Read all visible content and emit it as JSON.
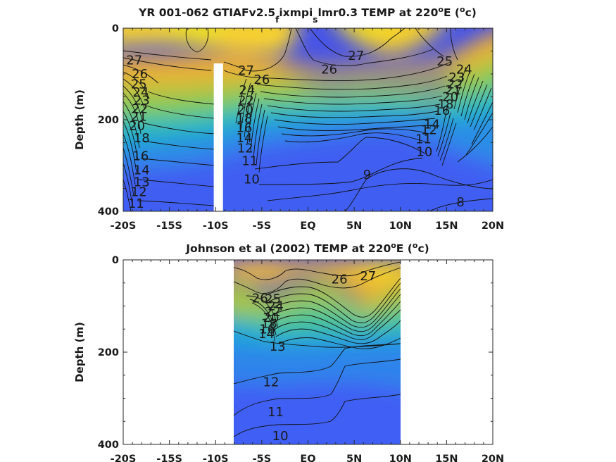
{
  "chart_data": [
    {
      "type": "heatmap",
      "title_parts": [
        "YR 001-062 GTIAFv2.5",
        "f",
        "ixmpi",
        "s",
        "lmr0.3 TEMP at 220",
        "o",
        "E (",
        "o",
        "c)"
      ],
      "title": "YR 001-062 GTIAFv2.5_fixmpi_slmr0.3 TEMP at 220°E (°c)",
      "ylabel": "Depth (m)",
      "xlabel": "",
      "x_ticks": [
        "-20S",
        "-15S",
        "-10S",
        "-5S",
        "EQ",
        "5N",
        "10N",
        "15N",
        "20N"
      ],
      "y_ticks": [
        "0",
        "200",
        "400"
      ],
      "xlim": [
        -20,
        20
      ],
      "ylim": [
        0,
        400
      ],
      "y_reversed": true,
      "colorscale": [
        "#3e26a8",
        "#3d63f3",
        "#1b9de0",
        "#27c2a6",
        "#8cca52",
        "#e3b930",
        "#fbd028",
        "#f6e31d"
      ],
      "missing_band": {
        "lat_from": -10.2,
        "lat_to": -9.2,
        "depth_from": 77,
        "depth_to": 400
      },
      "contour_interval": 1,
      "contour_labels": [
        {
          "text": "27",
          "lat": -18.8,
          "depth": 70
        },
        {
          "text": "26",
          "lat": -18.2,
          "depth": 100
        },
        {
          "text": "25",
          "lat": -18.3,
          "depth": 122
        },
        {
          "text": "24",
          "lat": -18.1,
          "depth": 140
        },
        {
          "text": "23",
          "lat": -18.0,
          "depth": 158
        },
        {
          "text": "22",
          "lat": -18.2,
          "depth": 176
        },
        {
          "text": "21",
          "lat": -18.3,
          "depth": 193
        },
        {
          "text": "20",
          "lat": -18.5,
          "depth": 213
        },
        {
          "text": "18",
          "lat": -18.0,
          "depth": 240
        },
        {
          "text": "16",
          "lat": -18.1,
          "depth": 279
        },
        {
          "text": "14",
          "lat": -18.0,
          "depth": 310
        },
        {
          "text": "13",
          "lat": -18.0,
          "depth": 336
        },
        {
          "text": "12",
          "lat": -18.3,
          "depth": 358
        },
        {
          "text": "11",
          "lat": -18.6,
          "depth": 383
        },
        {
          "text": "27",
          "lat": -6.7,
          "depth": 92
        },
        {
          "text": "26",
          "lat": -5.0,
          "depth": 112
        },
        {
          "text": "24",
          "lat": -6.6,
          "depth": 135
        },
        {
          "text": "22",
          "lat": -6.7,
          "depth": 158
        },
        {
          "text": "20",
          "lat": -6.8,
          "depth": 178
        },
        {
          "text": "18",
          "lat": -6.9,
          "depth": 197
        },
        {
          "text": "16",
          "lat": -6.9,
          "depth": 218
        },
        {
          "text": "14",
          "lat": -6.9,
          "depth": 240
        },
        {
          "text": "12",
          "lat": -6.8,
          "depth": 262
        },
        {
          "text": "11",
          "lat": -6.3,
          "depth": 290
        },
        {
          "text": "10",
          "lat": -6.1,
          "depth": 330
        },
        {
          "text": "27",
          "lat": 5.2,
          "depth": 60
        },
        {
          "text": "26",
          "lat": 2.3,
          "depth": 90
        },
        {
          "text": "9",
          "lat": 6.4,
          "depth": 320
        },
        {
          "text": "8",
          "lat": 16.5,
          "depth": 380
        },
        {
          "text": "25",
          "lat": 14.8,
          "depth": 72
        },
        {
          "text": "24",
          "lat": 16.9,
          "depth": 90
        },
        {
          "text": "23",
          "lat": 16.1,
          "depth": 108
        },
        {
          "text": "22",
          "lat": 15.9,
          "depth": 122
        },
        {
          "text": "21",
          "lat": 15.7,
          "depth": 135
        },
        {
          "text": "20",
          "lat": 15.4,
          "depth": 150
        },
        {
          "text": "18",
          "lat": 14.9,
          "depth": 166
        },
        {
          "text": "16",
          "lat": 14.5,
          "depth": 180
        },
        {
          "text": "14",
          "lat": 13.4,
          "depth": 210
        },
        {
          "text": "12",
          "lat": 13.1,
          "depth": 222
        },
        {
          "text": "11",
          "lat": 12.5,
          "depth": 242
        },
        {
          "text": "10",
          "lat": 12.6,
          "depth": 270
        }
      ]
    },
    {
      "type": "heatmap",
      "title_parts": [
        "Johnson et al (2002) TEMP at 220",
        "o",
        "E (",
        "o",
        "c)"
      ],
      "title": "Johnson et al (2002) TEMP at 220°E (°c)",
      "ylabel": "Depth (m)",
      "xlabel": "",
      "x_ticks": [
        "-20S",
        "-15S",
        "-10S",
        "-5S",
        "EQ",
        "5N",
        "10N",
        "15N",
        "20N"
      ],
      "y_ticks": [
        "0",
        "200",
        "400"
      ],
      "xlim": [
        -20,
        20
      ],
      "ylim": [
        0,
        400
      ],
      "y_reversed": true,
      "data_extent": {
        "lat_from": -8,
        "lat_to": 10
      },
      "colorscale": [
        "#3e26a8",
        "#3d63f3",
        "#1b9de0",
        "#27c2a6",
        "#8cca52",
        "#e3b930",
        "#fbd028",
        "#f6e31d"
      ],
      "contour_interval": 1,
      "contour_labels": [
        {
          "text": "27",
          "lat": 6.5,
          "depth": 35
        },
        {
          "text": "26",
          "lat": 3.4,
          "depth": 42
        },
        {
          "text": "26",
          "lat": -5.2,
          "depth": 83
        },
        {
          "text": "25",
          "lat": -3.8,
          "depth": 85
        },
        {
          "text": "24",
          "lat": -3.5,
          "depth": 100
        },
        {
          "text": "22",
          "lat": -3.8,
          "depth": 112
        },
        {
          "text": "20",
          "lat": -4.0,
          "depth": 125
        },
        {
          "text": "18",
          "lat": -4.2,
          "depth": 138
        },
        {
          "text": "16",
          "lat": -4.4,
          "depth": 150
        },
        {
          "text": "14",
          "lat": -4.5,
          "depth": 160
        },
        {
          "text": "13",
          "lat": -3.3,
          "depth": 188
        },
        {
          "text": "12",
          "lat": -4.0,
          "depth": 265
        },
        {
          "text": "11",
          "lat": -3.5,
          "depth": 330
        },
        {
          "text": "10",
          "lat": -3.0,
          "depth": 382
        }
      ]
    }
  ]
}
